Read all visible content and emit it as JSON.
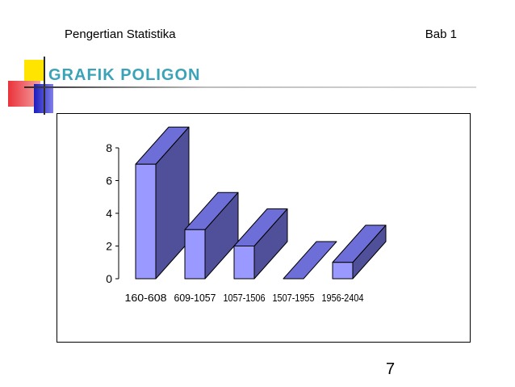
{
  "header": {
    "left_text": "Pengertian Statistika",
    "right_text": "Bab 1"
  },
  "slide": {
    "title": "GRAFIK POLIGON",
    "page_number": "7"
  },
  "colors": {
    "bar_front": "#9999ff",
    "bar_top": "#6e6ed8",
    "bar_side": "#50509a",
    "title": "#3aa3b7"
  },
  "chart_data": {
    "type": "bar",
    "style": "3d",
    "categories": [
      "160-608",
      "609-1057",
      "1057-1506",
      "1507-1955",
      "1956-2404"
    ],
    "values": [
      7,
      3,
      2,
      0,
      1
    ],
    "ylim": [
      0,
      8
    ],
    "yticks": [
      "0",
      "2",
      "4",
      "6",
      "8"
    ],
    "title": "",
    "xlabel": "",
    "ylabel": "",
    "legend": "none",
    "grid": false
  }
}
